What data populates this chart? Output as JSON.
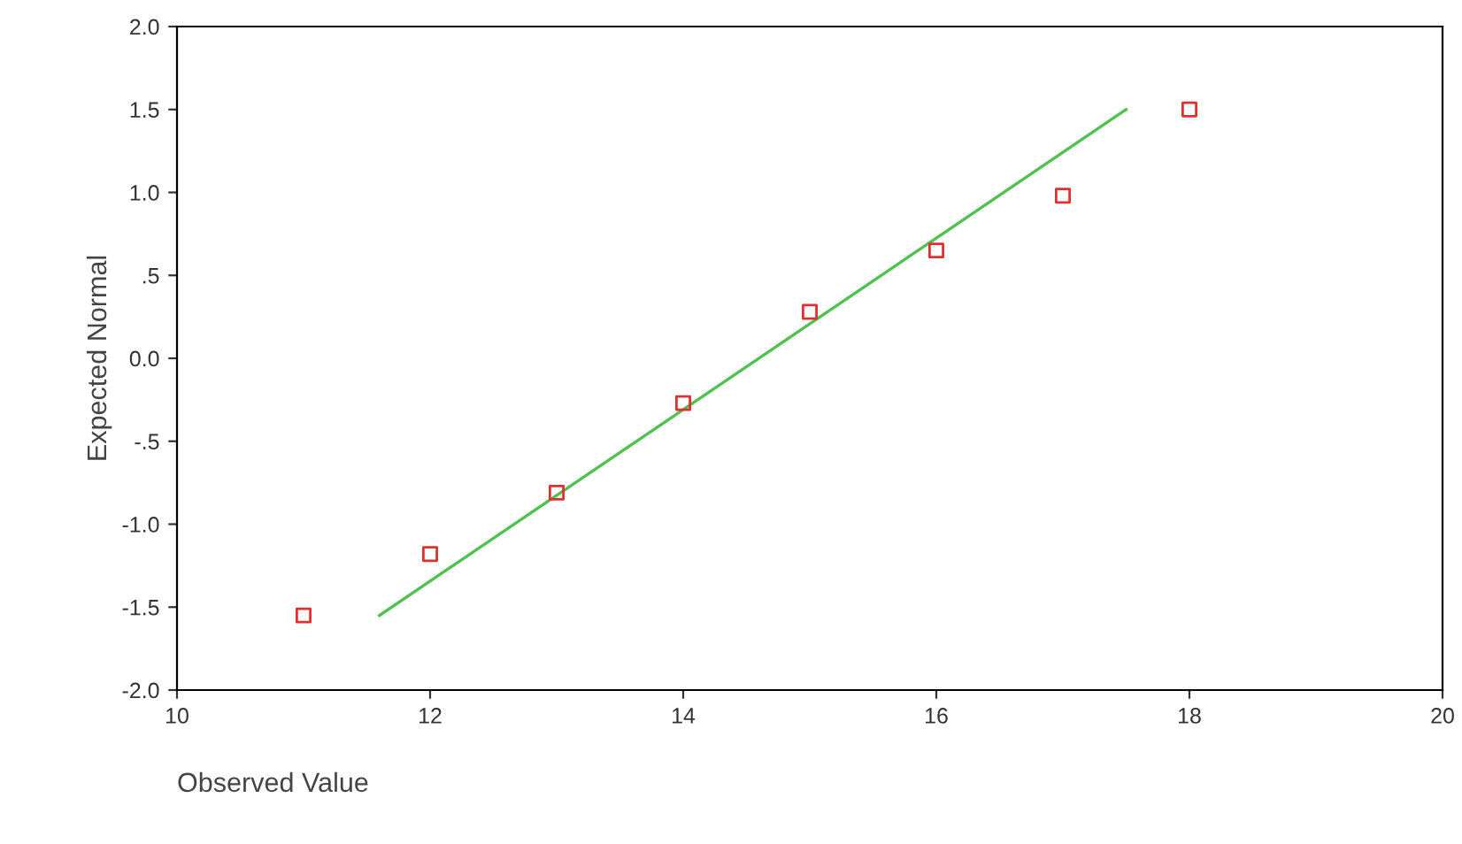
{
  "chart_data": {
    "type": "scatter",
    "xlabel": "Observed Value",
    "ylabel": "Expected Normal",
    "series": [
      {
        "color": "#e03030",
        "marker": "square",
        "x": [
          11,
          12,
          13,
          14,
          15,
          16,
          17,
          18
        ],
        "values": [
          -1.55,
          -1.18,
          -0.81,
          -0.27,
          0.28,
          0.65,
          0.98,
          1.5
        ]
      },
      {
        "type": "line",
        "color": "#50c050",
        "marker": "none",
        "line_style": "solid",
        "x": [
          11.6,
          17.5
        ],
        "values": [
          -1.55,
          1.5
        ]
      }
    ],
    "xlim": [
      10,
      20
    ],
    "xticks": [
      10,
      12,
      14,
      16,
      18,
      20
    ],
    "ylim": [
      -2.0,
      2.0
    ],
    "yticks": [
      {
        "value": -2.0,
        "label": "-2.0"
      },
      {
        "value": -1.5,
        "label": "-1.5"
      },
      {
        "value": -1.0,
        "label": "-1.0"
      },
      {
        "value": -0.5,
        "label": "-.5"
      },
      {
        "value": 0.0,
        "label": "0.0"
      },
      {
        "value": 0.5,
        "label": ".5"
      },
      {
        "value": 1.0,
        "label": "1.0"
      },
      {
        "value": 1.5,
        "label": "1.5"
      },
      {
        "value": 2.0,
        "label": "2.0"
      }
    ],
    "grid": false,
    "legend": false
  }
}
